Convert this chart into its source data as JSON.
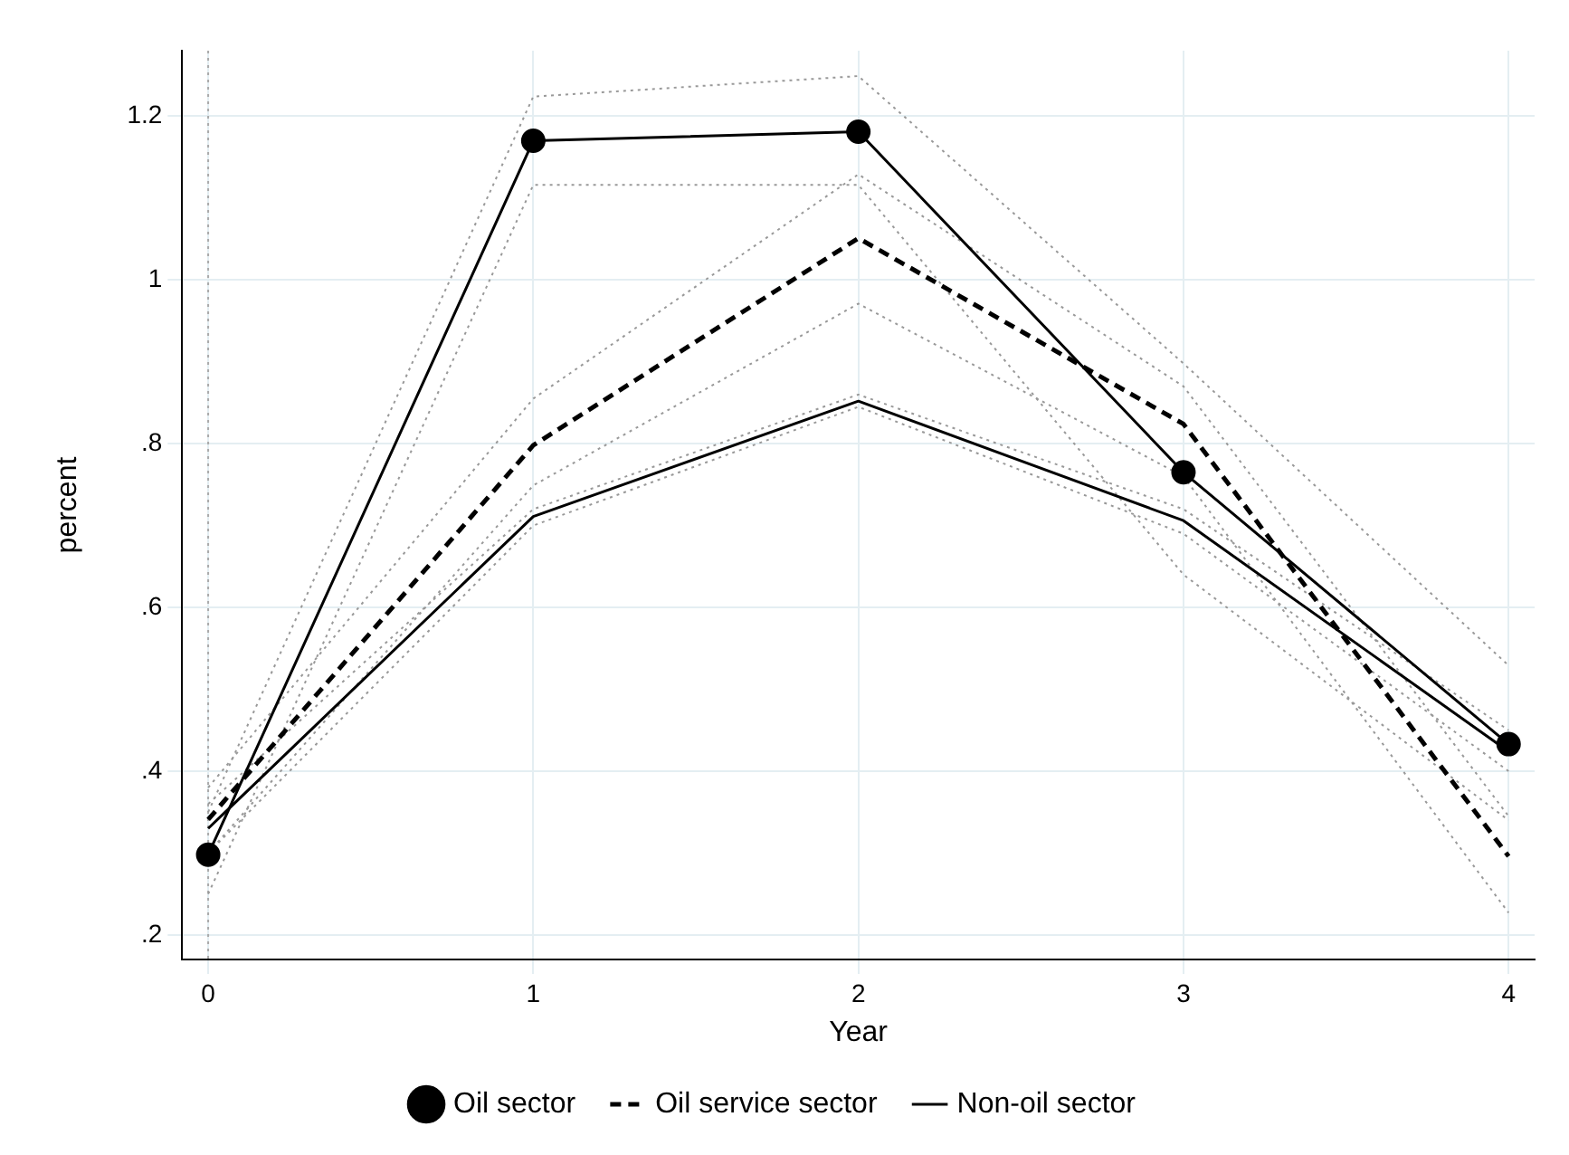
{
  "chart_data": {
    "type": "line",
    "xlabel": "Year",
    "ylabel": "percent",
    "x": [
      0,
      1,
      2,
      3,
      4
    ],
    "xlim": [
      -0.08,
      4.08
    ],
    "xticks": [
      0,
      1,
      2,
      3,
      4
    ],
    "ylim": [
      0.17,
      1.28
    ],
    "yticks": [
      {
        "value": 0.2,
        "label": ".2"
      },
      {
        "value": 0.4,
        "label": ".4"
      },
      {
        "value": 0.6,
        "label": ".6"
      },
      {
        "value": 0.8,
        "label": ".8"
      },
      1,
      1.2
    ],
    "grid": true,
    "legend": "bottom",
    "series": [
      {
        "name": "Oil sector",
        "color": "#000000",
        "marker": "circle",
        "line_style": "solid",
        "values": [
          0.298,
          1.17,
          1.181,
          0.765,
          0.433
        ]
      },
      {
        "name": "Oil service sector",
        "color": "#000000",
        "marker": "none",
        "line_style": "dashed",
        "values": [
          0.341,
          0.798,
          1.051,
          0.824,
          0.296
        ]
      },
      {
        "name": "Non-oil sector",
        "color": "#000000",
        "marker": "none",
        "line_style": "solid",
        "values": [
          0.33,
          0.711,
          0.852,
          0.706,
          0.424
        ]
      },
      {
        "color": "#999999",
        "marker": "none",
        "line_style": "dotted",
        "values": [
          0.25,
          1.116,
          1.116,
          0.64,
          0.34
        ]
      },
      {
        "color": "#999999",
        "marker": "none",
        "line_style": "dotted",
        "values": [
          0.35,
          1.224,
          1.249,
          0.898,
          0.529
        ]
      },
      {
        "color": "#999999",
        "marker": "none",
        "line_style": "dotted",
        "values": [
          0.3,
          0.749,
          0.971,
          0.76,
          0.227
        ]
      },
      {
        "color": "#999999",
        "marker": "none",
        "line_style": "dotted",
        "values": [
          0.38,
          0.855,
          1.129,
          0.87,
          0.345
        ]
      },
      {
        "color": "#999999",
        "marker": "none",
        "line_style": "dotted",
        "values": [
          0.3,
          0.7,
          0.845,
          0.69,
          0.4
        ]
      },
      {
        "color": "#999999",
        "marker": "none",
        "line_style": "dotted",
        "values": [
          0.36,
          0.72,
          0.86,
          0.72,
          0.45
        ]
      }
    ],
    "ref_lines": [
      {
        "axis": "x",
        "value": 0,
        "color": "#aaaaaa",
        "line_style": "dotted"
      }
    ]
  }
}
